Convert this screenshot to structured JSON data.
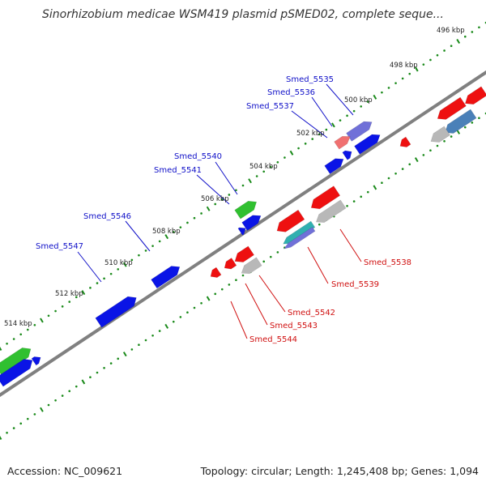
{
  "title": "Sinorhizobium medicae WSM419 plasmid pSMED02, complete seque...",
  "footer": {
    "accession": "Accession: NC_009621",
    "summary": "Topology: circular; Length: 1,245,408 bp; Genes: 1,094"
  },
  "colors": {
    "backbone": "#808080",
    "tick": "#1a8a1a",
    "forward_label": "#1010c8",
    "reverse_label": "#d01010",
    "forward_gene": "#0a14e6",
    "reverse_gene": "#ee1010",
    "rna_gene": "#30c030",
    "other_gene": "#b8b8b8",
    "purple_gene": "#7070d8",
    "steel_gene": "#4a80b8",
    "pink_gene": "#f07070",
    "teal_gene": "#30b0b0"
  },
  "ticks": [
    "496 kbp",
    "498 kbp",
    "500 kbp",
    "502 kbp",
    "504 kbp",
    "506 kbp",
    "508 kbp",
    "510 kbp",
    "512 kbp",
    "514 kbp"
  ],
  "forward_labels": [
    "Smed_5535",
    "Smed_5536",
    "Smed_5537",
    "Smed_5540",
    "Smed_5541",
    "Smed_5546",
    "Smed_5547"
  ],
  "reverse_labels": [
    "Smed_5538",
    "Smed_5539",
    "Smed_5542",
    "Smed_5543",
    "Smed_5544"
  ]
}
